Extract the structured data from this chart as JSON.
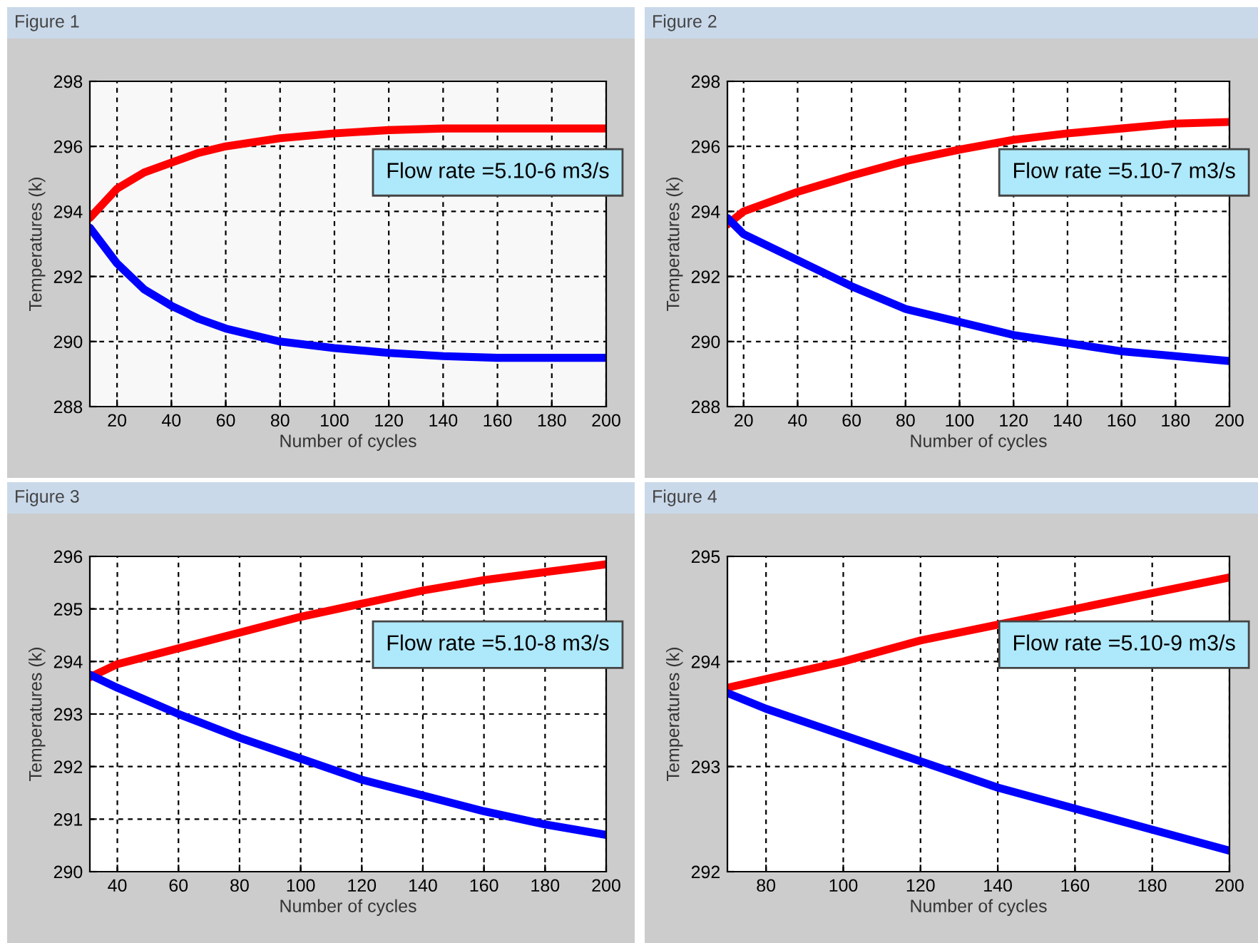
{
  "chart_data": [
    {
      "type": "line",
      "title": "Figure 1",
      "xlabel": "Number of cycles",
      "ylabel": "Temperatures (k)",
      "xlim": [
        10,
        200
      ],
      "xticks": [
        20,
        40,
        60,
        80,
        100,
        120,
        140,
        160,
        180,
        200
      ],
      "ylim": [
        288,
        298
      ],
      "yticks": [
        288,
        290,
        292,
        294,
        296,
        298
      ],
      "grid": true,
      "annotations": [
        "Flow rate =5.10-6 m3/s"
      ],
      "series": [
        {
          "color": "#ff0000",
          "x": [
            10,
            20,
            30,
            40,
            50,
            60,
            80,
            100,
            120,
            140,
            160,
            200
          ],
          "values": [
            293.8,
            294.7,
            295.2,
            295.5,
            295.8,
            296.0,
            296.25,
            296.4,
            296.5,
            296.55,
            296.55,
            296.55
          ]
        },
        {
          "color": "#0000ff",
          "x": [
            10,
            20,
            30,
            40,
            50,
            60,
            80,
            100,
            120,
            140,
            160,
            200
          ],
          "values": [
            293.5,
            292.4,
            291.6,
            291.1,
            290.7,
            290.4,
            290.0,
            289.8,
            289.65,
            289.55,
            289.5,
            289.5
          ]
        }
      ]
    },
    {
      "type": "line",
      "title": "Figure 2",
      "xlabel": "Number of cycles",
      "ylabel": "Temperatures (k)",
      "xlim": [
        14,
        200
      ],
      "xticks": [
        20,
        40,
        60,
        80,
        100,
        120,
        140,
        160,
        180,
        200
      ],
      "ylim": [
        288,
        298
      ],
      "yticks": [
        288,
        290,
        292,
        294,
        296,
        298
      ],
      "grid": true,
      "annotations": [
        "Flow rate =5.10-7 m3/s"
      ],
      "series": [
        {
          "color": "#ff0000",
          "x": [
            14,
            20,
            40,
            60,
            80,
            100,
            120,
            140,
            160,
            180,
            200
          ],
          "values": [
            293.6,
            294.0,
            294.6,
            295.1,
            295.55,
            295.9,
            296.2,
            296.4,
            296.55,
            296.7,
            296.75
          ]
        },
        {
          "color": "#0000ff",
          "x": [
            14,
            20,
            40,
            60,
            80,
            100,
            120,
            140,
            160,
            180,
            200
          ],
          "values": [
            293.8,
            293.3,
            292.5,
            291.7,
            291.0,
            290.6,
            290.2,
            289.95,
            289.7,
            289.55,
            289.4
          ]
        }
      ]
    },
    {
      "type": "line",
      "title": "Figure 3",
      "xlabel": "Number of cycles",
      "ylabel": "Temperatures (k)",
      "xlim": [
        31,
        200
      ],
      "xticks": [
        40,
        60,
        80,
        100,
        120,
        140,
        160,
        180,
        200
      ],
      "ylim": [
        290,
        296
      ],
      "yticks": [
        290,
        291,
        292,
        293,
        294,
        295,
        296
      ],
      "grid": true,
      "annotations": [
        "Flow rate =5.10-8 m3/s"
      ],
      "series": [
        {
          "color": "#ff0000",
          "x": [
            31,
            40,
            60,
            80,
            100,
            120,
            140,
            160,
            180,
            200
          ],
          "values": [
            293.7,
            293.95,
            294.25,
            294.55,
            294.85,
            295.1,
            295.35,
            295.55,
            295.7,
            295.85
          ]
        },
        {
          "color": "#0000ff",
          "x": [
            31,
            40,
            60,
            80,
            100,
            120,
            140,
            160,
            180,
            200
          ],
          "values": [
            293.75,
            293.5,
            293.0,
            292.55,
            292.15,
            291.75,
            291.45,
            291.15,
            290.9,
            290.7
          ]
        }
      ]
    },
    {
      "type": "line",
      "title": "Figure 4",
      "xlabel": "Number of cycles",
      "ylabel": "Temperatures (k)",
      "xlim": [
        70,
        200
      ],
      "xticks": [
        80,
        100,
        120,
        140,
        160,
        180,
        200
      ],
      "ylim": [
        292,
        295
      ],
      "yticks": [
        292,
        293,
        294,
        295
      ],
      "grid": true,
      "annotations": [
        "Flow rate =5.10-9 m3/s"
      ],
      "series": [
        {
          "color": "#ff0000",
          "x": [
            70,
            100,
            120,
            140,
            160,
            180,
            200
          ],
          "values": [
            293.75,
            294.0,
            294.2,
            294.35,
            294.5,
            294.65,
            294.8
          ]
        },
        {
          "color": "#0000ff",
          "x": [
            70,
            80,
            100,
            120,
            140,
            160,
            180,
            200
          ],
          "values": [
            293.7,
            293.55,
            293.3,
            293.05,
            292.8,
            292.6,
            292.4,
            292.2
          ]
        }
      ]
    }
  ]
}
